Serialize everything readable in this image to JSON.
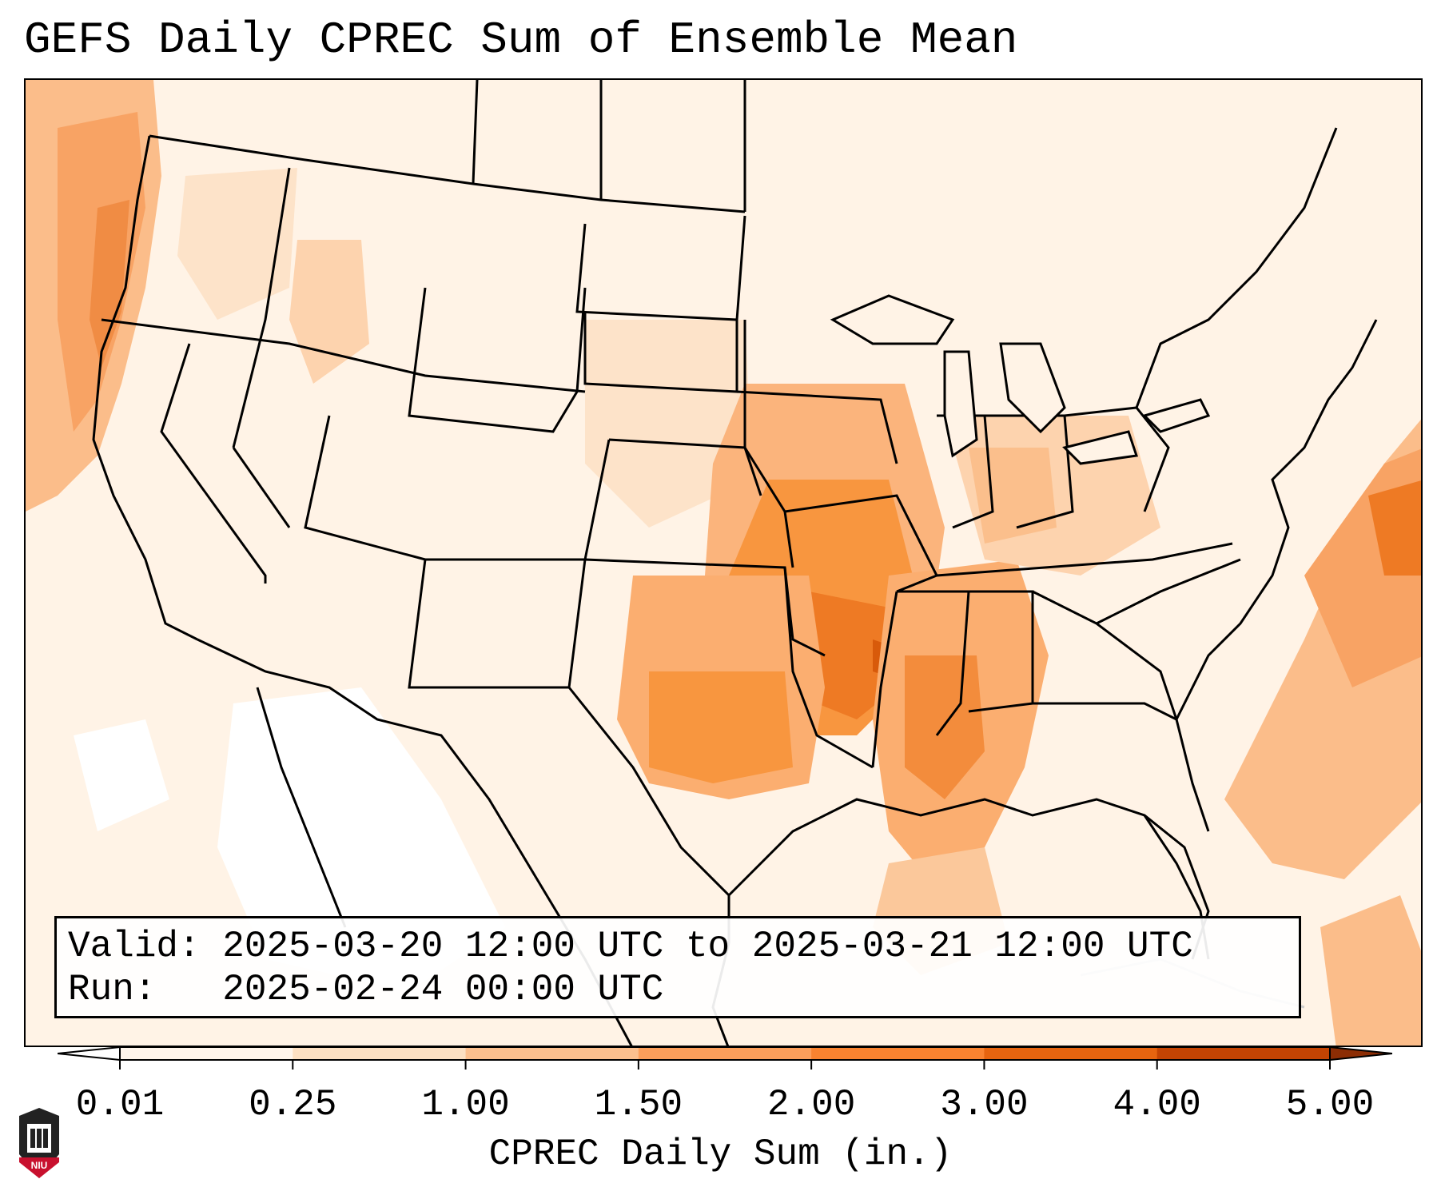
{
  "title": "GEFS Daily CPREC Sum of Ensemble Mean",
  "info": {
    "valid_label": "Valid:",
    "valid_value": "2025-03-20 12:00 UTC to 2025-03-21 12:00 UTC",
    "run_label": "Run:",
    "run_value": "2025-02-24 00:00 UTC"
  },
  "colorbar": {
    "label": "CPREC Daily Sum (in.)",
    "ticks": [
      "0.01",
      "0.25",
      "1.00",
      "1.50",
      "2.00",
      "3.00",
      "4.00",
      "5.00"
    ],
    "colors": [
      "#fff5eb",
      "#fde0c2",
      "#fdc08e",
      "#fd9f5b",
      "#f98330",
      "#e6640f",
      "#c44403"
    ],
    "under_color": "#ffffff",
    "over_color": "#8c2d04"
  },
  "logo": {
    "text": "NIU",
    "icon": "niu-seal-icon"
  },
  "map": {
    "region": "Continental United States",
    "features": [
      "state-borders",
      "coastlines",
      "great-lakes",
      "precipitation-shading"
    ]
  }
}
